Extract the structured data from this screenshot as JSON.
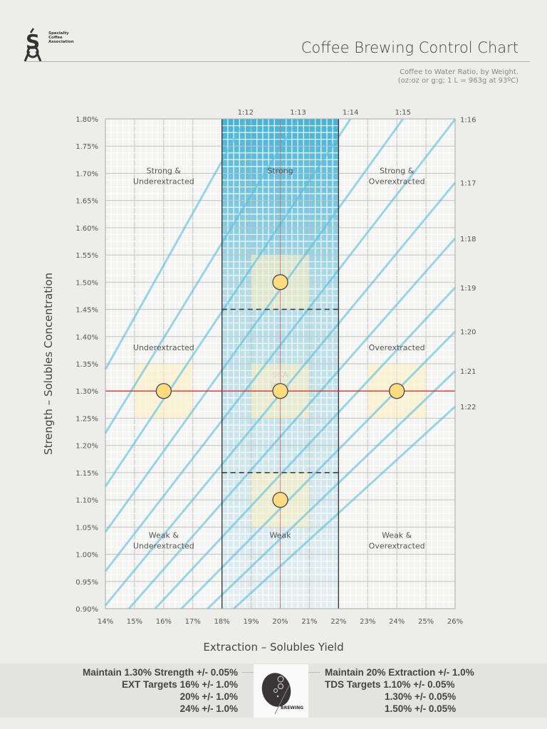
{
  "header": {
    "logo_text": "Specialty\nCoffee\nAssociation",
    "title": "Coffee Brewing Control Chart",
    "subtitle_line1": "Coffee to Water Ratio, by Weight.",
    "subtitle_line2": "(oz:oz or g:g; 1 L = 963g at 93ºC)"
  },
  "chart_data": {
    "type": "line",
    "xlabel": "Extraction – Solubles Yield",
    "ylabel": "Strength – Solubles Concentration",
    "xlim": [
      14,
      26
    ],
    "ylim": [
      0.9,
      1.8
    ],
    "x_ticks": [
      "14%",
      "15%",
      "16%",
      "17%",
      "18%",
      "19%",
      "20%",
      "21%",
      "22%",
      "23%",
      "24%",
      "25%",
      "26%"
    ],
    "y_ticks": [
      "0.90%",
      "0.95%",
      "1.00%",
      "1.05%",
      "1.10%",
      "1.15%",
      "1.20%",
      "1.25%",
      "1.30%",
      "1.35%",
      "1.40%",
      "1.45%",
      "1.50%",
      "1.55%",
      "1.60%",
      "1.65%",
      "1.70%",
      "1.75%",
      "1.80%"
    ],
    "grid": true,
    "ratio_lines": [
      {
        "label": "1:12",
        "ratio": 12
      },
      {
        "label": "1:13",
        "ratio": 13
      },
      {
        "label": "1:14",
        "ratio": 14
      },
      {
        "label": "1:15",
        "ratio": 15
      },
      {
        "label": "1:16",
        "ratio": 16
      },
      {
        "label": "1:17",
        "ratio": 17
      },
      {
        "label": "1:18",
        "ratio": 18
      },
      {
        "label": "1:19",
        "ratio": 19
      },
      {
        "label": "1:20",
        "ratio": 20
      },
      {
        "label": "1:21",
        "ratio": 21
      },
      {
        "label": "1:22",
        "ratio": 22
      }
    ],
    "ideal_band": {
      "x": [
        18,
        22
      ],
      "color": "#3bb0d6"
    },
    "dashed_lines": [
      1.45,
      1.15
    ],
    "reference_lines": {
      "x": 20,
      "y": 1.3,
      "color": "#e02020"
    },
    "target_points": [
      {
        "x": 16,
        "y": 1.3
      },
      {
        "x": 20,
        "y": 1.3
      },
      {
        "x": 24,
        "y": 1.3
      },
      {
        "x": 20,
        "y": 1.5
      },
      {
        "x": 20,
        "y": 1.1
      }
    ],
    "target_tolerance": {
      "x": 1.0,
      "y": 0.05
    },
    "regions": [
      {
        "label": "Strong &\nUnderextracted",
        "x": 16,
        "y": 1.7
      },
      {
        "label": "Strong",
        "x": 20,
        "y": 1.7
      },
      {
        "label": "Strong &\nOverextracted",
        "x": 24,
        "y": 1.7
      },
      {
        "label": "Underextracted",
        "x": 16,
        "y": 1.375
      },
      {
        "label": "Overextracted",
        "x": 24,
        "y": 1.375
      },
      {
        "label": "SCA\nIdeal",
        "x": 20,
        "y": 1.325
      },
      {
        "label": "Weak &\nUnderextracted",
        "x": 16,
        "y": 1.03
      },
      {
        "label": "Weak",
        "x": 20,
        "y": 1.03
      },
      {
        "label": "Weak &\nOverextracted",
        "x": 24,
        "y": 1.03
      }
    ]
  },
  "footer": {
    "left": [
      "Maintain 1.30% Strength +/- 0.05%",
      "EXT Targets 16% +/- 1.0%",
      "20% +/- 1.0%",
      "24% +/- 1.0%"
    ],
    "right": [
      "Maintain 20% Extraction +/- 1.0%",
      "TDS Targets 1.10% +/- 0.05%",
      "1.30% +/- 0.05%",
      "1.50% +/- 0.05%"
    ],
    "logo_text": "BREWING"
  }
}
